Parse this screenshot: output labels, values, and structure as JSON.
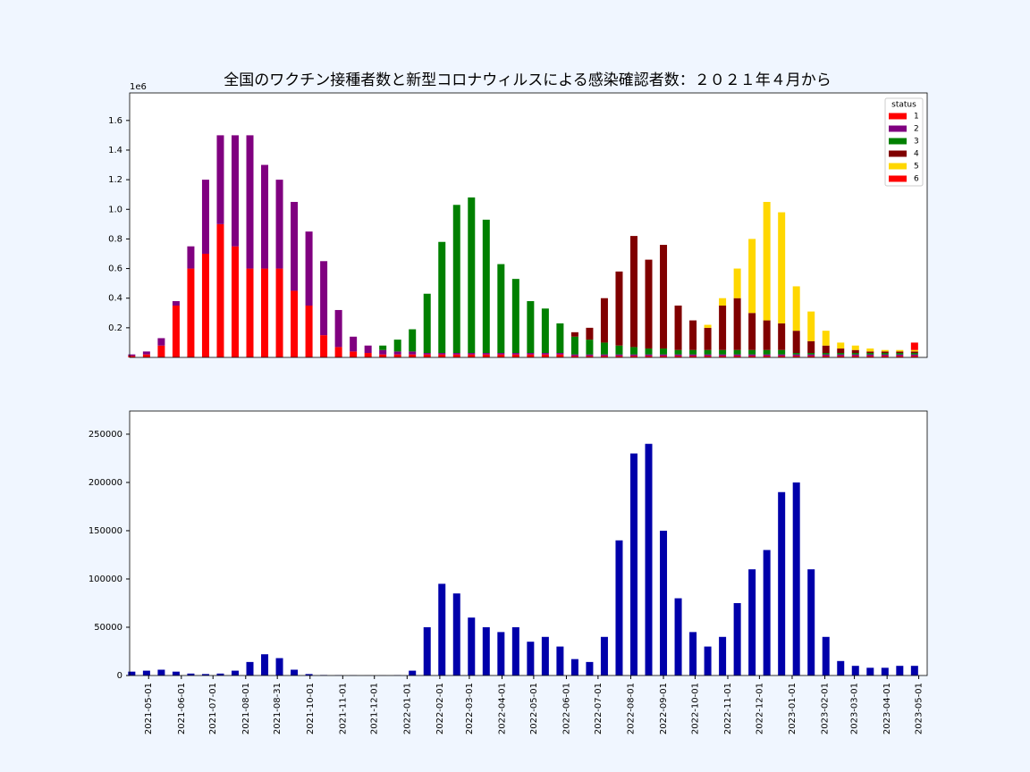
{
  "chart_data": [
    {
      "type": "stacked_bar",
      "title": "全国のワクチン接種者数と新型コロナウィルスによる感染確認者数：２０２１年４月から",
      "y_offset_label": "1e6",
      "legend_title": "status",
      "legend": "upper right",
      "x": [
        "2021-04-15",
        "2021-04-29",
        "2021-05-13",
        "2021-05-27",
        "2021-06-10",
        "2021-06-24",
        "2021-07-08",
        "2021-07-22",
        "2021-08-05",
        "2021-08-19",
        "2021-09-02",
        "2021-09-16",
        "2021-09-30",
        "2021-10-14",
        "2021-10-28",
        "2021-11-11",
        "2021-11-25",
        "2021-12-09",
        "2021-12-23",
        "2022-01-06",
        "2022-01-20",
        "2022-02-03",
        "2022-02-17",
        "2022-03-03",
        "2022-03-17",
        "2022-03-31",
        "2022-04-14",
        "2022-04-28",
        "2022-05-12",
        "2022-05-26",
        "2022-06-09",
        "2022-06-23",
        "2022-07-07",
        "2022-07-21",
        "2022-08-04",
        "2022-08-18",
        "2022-09-01",
        "2022-09-15",
        "2022-09-29",
        "2022-10-13",
        "2022-10-27",
        "2022-11-10",
        "2022-11-24",
        "2022-12-08",
        "2022-12-22",
        "2023-01-05",
        "2023-01-19",
        "2023-02-02",
        "2023-02-16",
        "2023-03-02",
        "2023-03-16",
        "2023-03-30",
        "2023-04-13",
        "2023-04-27"
      ],
      "xlim": [
        "2021-04-13",
        "2023-05-09"
      ],
      "ylim": [
        0,
        1786000
      ],
      "yticks": [
        {
          "value": 200000,
          "label": "0.2"
        },
        {
          "value": 400000,
          "label": "0.4"
        },
        {
          "value": 600000,
          "label": "0.6"
        },
        {
          "value": 800000,
          "label": "0.8"
        },
        {
          "value": 1000000,
          "label": "1.0"
        },
        {
          "value": 1200000,
          "label": "1.2"
        },
        {
          "value": 1400000,
          "label": "1.4"
        },
        {
          "value": 1600000,
          "label": "1.6"
        }
      ],
      "series": [
        {
          "name": "1",
          "color": "#ff0000",
          "values": [
            10000,
            20000,
            80000,
            350000,
            600000,
            700000,
            900000,
            750000,
            600000,
            600000,
            600000,
            450000,
            350000,
            150000,
            70000,
            40000,
            30000,
            20000,
            20000,
            20000,
            20000,
            20000,
            20000,
            20000,
            20000,
            20000,
            20000,
            20000,
            20000,
            20000,
            10000,
            10000,
            10000,
            10000,
            10000,
            10000,
            10000,
            10000,
            10000,
            10000,
            10000,
            10000,
            10000,
            10000,
            10000,
            10000,
            10000,
            10000,
            10000,
            10000,
            10000,
            10000,
            10000,
            10000
          ]
        },
        {
          "name": "2",
          "color": "#800080",
          "values": [
            10000,
            20000,
            50000,
            30000,
            150000,
            500000,
            600000,
            750000,
            900000,
            700000,
            600000,
            600000,
            500000,
            500000,
            250000,
            100000,
            50000,
            30000,
            20000,
            20000,
            10000,
            10000,
            10000,
            10000,
            10000,
            10000,
            10000,
            10000,
            10000,
            10000,
            10000,
            10000,
            10000,
            10000,
            10000,
            10000,
            10000,
            10000,
            10000,
            10000,
            10000,
            10000,
            10000,
            10000,
            10000,
            10000,
            10000,
            10000,
            10000,
            10000,
            10000,
            10000,
            10000,
            10000
          ]
        },
        {
          "name": "3",
          "color": "#008000",
          "values": [
            0,
            0,
            0,
            0,
            0,
            0,
            0,
            0,
            0,
            0,
            0,
            0,
            0,
            0,
            0,
            0,
            0,
            30000,
            80000,
            150000,
            400000,
            750000,
            1000000,
            1050000,
            900000,
            600000,
            500000,
            350000,
            300000,
            200000,
            120000,
            100000,
            80000,
            60000,
            50000,
            40000,
            40000,
            30000,
            30000,
            30000,
            30000,
            30000,
            30000,
            30000,
            30000,
            10000,
            10000,
            10000,
            10000,
            10000,
            10000,
            10000,
            10000,
            10000
          ]
        },
        {
          "name": "4",
          "color": "#800000",
          "values": [
            0,
            0,
            0,
            0,
            0,
            0,
            0,
            0,
            0,
            0,
            0,
            0,
            0,
            0,
            0,
            0,
            0,
            0,
            0,
            0,
            0,
            0,
            0,
            0,
            0,
            0,
            0,
            0,
            0,
            0,
            30000,
            80000,
            300000,
            500000,
            750000,
            600000,
            700000,
            300000,
            200000,
            150000,
            300000,
            350000,
            250000,
            200000,
            180000,
            150000,
            80000,
            50000,
            30000,
            20000,
            10000,
            10000,
            10000,
            10000
          ]
        },
        {
          "name": "5",
          "color": "#ffd700",
          "values": [
            0,
            0,
            0,
            0,
            0,
            0,
            0,
            0,
            0,
            0,
            0,
            0,
            0,
            0,
            0,
            0,
            0,
            0,
            0,
            0,
            0,
            0,
            0,
            0,
            0,
            0,
            0,
            0,
            0,
            0,
            0,
            0,
            0,
            0,
            0,
            0,
            0,
            0,
            0,
            20000,
            50000,
            200000,
            500000,
            800000,
            750000,
            300000,
            200000,
            100000,
            40000,
            30000,
            20000,
            10000,
            10000,
            10000
          ]
        },
        {
          "name": "6",
          "color": "#ff0000",
          "values": [
            0,
            0,
            0,
            0,
            0,
            0,
            0,
            0,
            0,
            0,
            0,
            0,
            0,
            0,
            0,
            0,
            0,
            0,
            0,
            0,
            0,
            0,
            0,
            0,
            0,
            0,
            0,
            0,
            0,
            0,
            0,
            0,
            0,
            0,
            0,
            0,
            0,
            0,
            0,
            0,
            0,
            0,
            0,
            0,
            0,
            0,
            0,
            0,
            0,
            0,
            0,
            0,
            0,
            50000
          ]
        }
      ]
    },
    {
      "type": "bar",
      "color": "#0000aa",
      "x": [
        "2021-04-15",
        "2021-04-29",
        "2021-05-13",
        "2021-05-27",
        "2021-06-10",
        "2021-06-24",
        "2021-07-08",
        "2021-07-22",
        "2021-08-05",
        "2021-08-19",
        "2021-09-02",
        "2021-09-16",
        "2021-09-30",
        "2021-10-14",
        "2021-10-28",
        "2021-11-11",
        "2021-11-25",
        "2021-12-09",
        "2021-12-23",
        "2022-01-06",
        "2022-01-20",
        "2022-02-03",
        "2022-02-17",
        "2022-03-03",
        "2022-03-17",
        "2022-03-31",
        "2022-04-14",
        "2022-04-28",
        "2022-05-12",
        "2022-05-26",
        "2022-06-09",
        "2022-06-23",
        "2022-07-07",
        "2022-07-21",
        "2022-08-04",
        "2022-08-18",
        "2022-09-01",
        "2022-09-15",
        "2022-09-29",
        "2022-10-13",
        "2022-10-27",
        "2022-11-10",
        "2022-11-24",
        "2022-12-08",
        "2022-12-22",
        "2023-01-05",
        "2023-01-19",
        "2023-02-02",
        "2023-02-16",
        "2023-03-02",
        "2023-03-16",
        "2023-03-30",
        "2023-04-13",
        "2023-04-27"
      ],
      "values": [
        4000,
        5000,
        6000,
        4000,
        2000,
        1500,
        2000,
        5000,
        14000,
        22000,
        18000,
        6000,
        1500,
        500,
        300,
        200,
        100,
        100,
        300,
        5000,
        50000,
        95000,
        85000,
        60000,
        50000,
        45000,
        50000,
        35000,
        40000,
        30000,
        17000,
        14000,
        40000,
        140000,
        230000,
        240000,
        150000,
        80000,
        45000,
        30000,
        40000,
        75000,
        110000,
        130000,
        190000,
        200000,
        110000,
        40000,
        15000,
        10000,
        8000,
        8000,
        10000,
        10000
      ],
      "xlim": [
        "2021-04-13",
        "2023-05-09"
      ],
      "xticks": [
        "2021-05-01",
        "2021-06-01",
        "2021-07-01",
        "2021-08-01",
        "2021-08-31",
        "2021-10-01",
        "2021-11-01",
        "2021-12-01",
        "2022-01-01",
        "2022-02-01",
        "2022-03-01",
        "2022-04-01",
        "2022-05-01",
        "2022-06-01",
        "2022-07-01",
        "2022-08-01",
        "2022-09-01",
        "2022-10-01",
        "2022-11-01",
        "2022-12-01",
        "2023-01-01",
        "2023-02-01",
        "2023-03-01",
        "2023-04-01",
        "2023-05-01"
      ],
      "ylim": [
        0,
        274000
      ],
      "yticks": [
        0,
        50000,
        100000,
        150000,
        200000,
        250000
      ]
    }
  ]
}
